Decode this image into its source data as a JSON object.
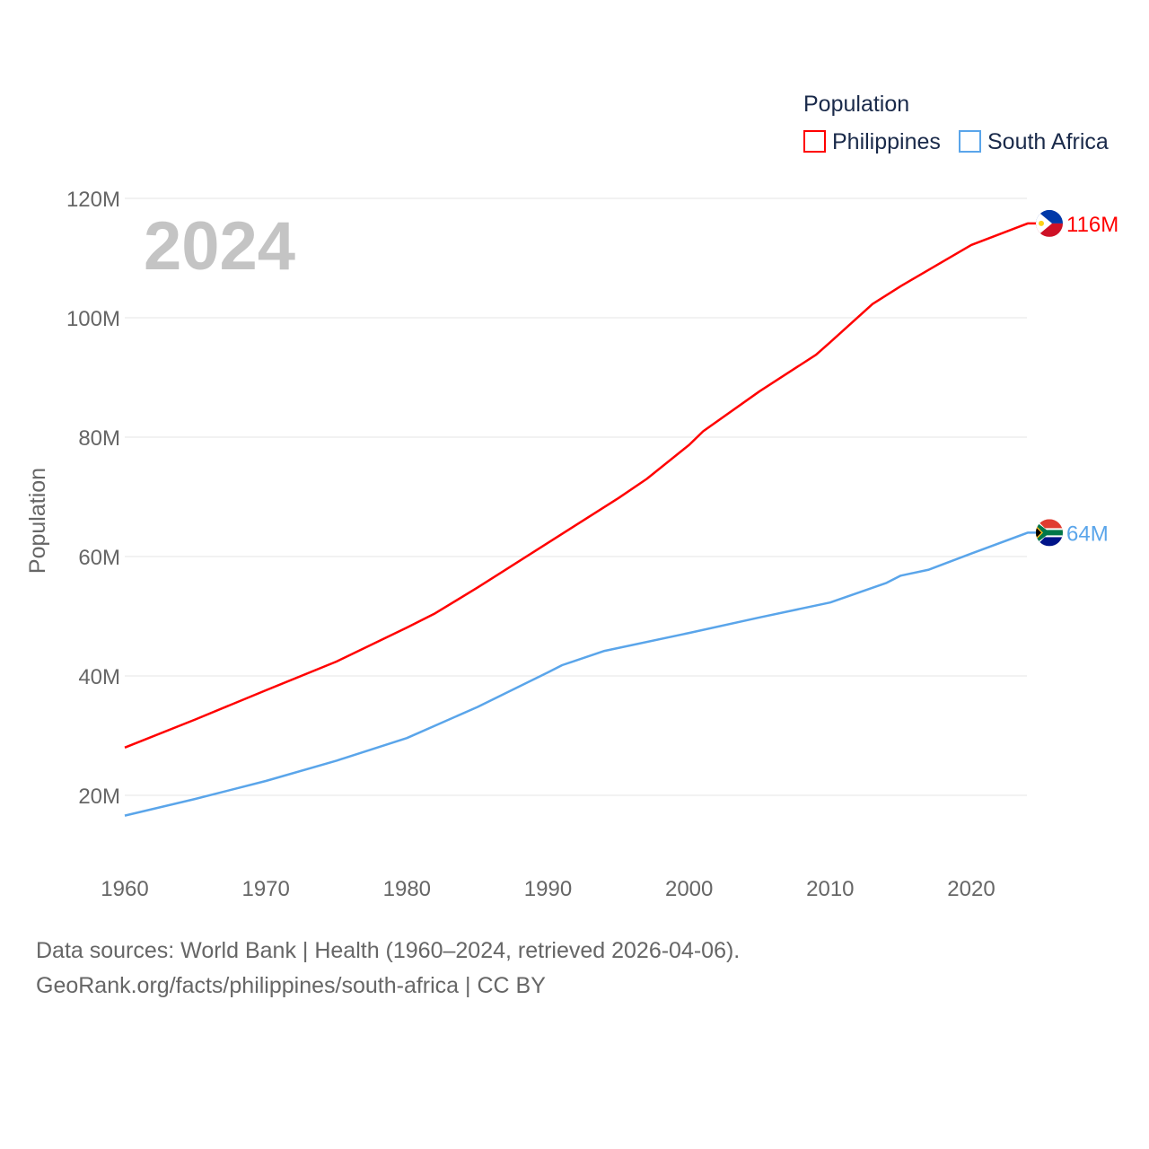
{
  "chart_data": {
    "type": "line",
    "ylabel": "Population",
    "year_label": "2024",
    "legend_title": "Population",
    "legend_position": "top-right",
    "ylim": [
      10,
      120
    ],
    "xlim": [
      1960,
      2024
    ],
    "y_ticks": [
      20,
      40,
      60,
      80,
      100,
      120
    ],
    "y_tick_labels": [
      "20M",
      "40M",
      "60M",
      "80M",
      "100M",
      "120M"
    ],
    "x_ticks": [
      1960,
      1970,
      1980,
      1990,
      2000,
      2010,
      2020
    ],
    "x_tick_labels": [
      "1960",
      "1970",
      "1980",
      "1990",
      "2000",
      "2010",
      "2020"
    ],
    "grid": true,
    "series": [
      {
        "name": "Philippines",
        "color": "#ff0000",
        "end_label": "116M",
        "flag": "philippines-flag",
        "x": [
          1960,
          1965,
          1970,
          1975,
          1980,
          1982,
          1985,
          1990,
          1995,
          1997,
          2000,
          2001,
          2005,
          2009,
          2010,
          2013,
          2015,
          2020,
          2024
        ],
        "values": [
          28.0,
          32.7,
          37.6,
          42.4,
          48.1,
          50.5,
          54.8,
          62.3,
          69.8,
          73.0,
          78.7,
          81.0,
          87.7,
          93.8,
          95.9,
          102.3,
          105.3,
          112.2,
          115.8
        ]
      },
      {
        "name": "South Africa",
        "color": "#5aa5ea",
        "end_label": "64M",
        "flag": "south-africa-flag",
        "x": [
          1960,
          1965,
          1970,
          1975,
          1980,
          1985,
          1990,
          1991,
          1994,
          2000,
          2005,
          2010,
          2014,
          2015,
          2017,
          2020,
          2024
        ],
        "values": [
          16.6,
          19.4,
          22.4,
          25.8,
          29.6,
          34.8,
          40.6,
          41.8,
          44.2,
          47.2,
          49.8,
          52.3,
          55.6,
          56.8,
          57.8,
          60.5,
          64.0
        ]
      }
    ]
  },
  "footer": {
    "line1": "Data sources: World Bank | Health (1960–2024, retrieved 2026-04-06).",
    "line2": "GeoRank.org/facts/philippines/south-africa | CC BY"
  }
}
